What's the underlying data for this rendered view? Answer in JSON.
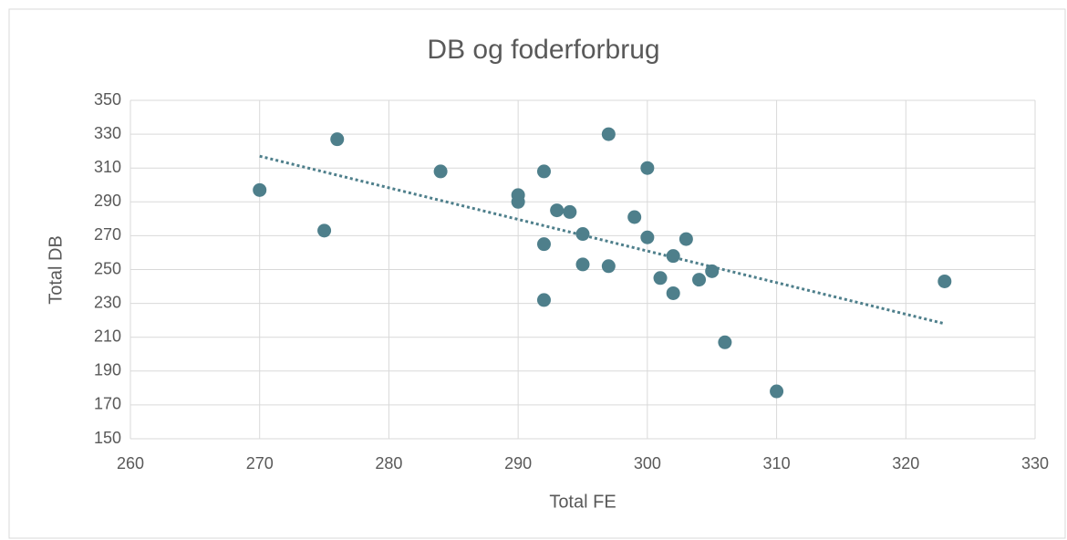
{
  "chart_data": {
    "type": "scatter",
    "title": "DB og foderforbrug",
    "x_label": "Total FE",
    "y_label": "Total DB",
    "series": [
      {
        "color": "#4e7f8b",
        "x": [
          270,
          275,
          276,
          284,
          290,
          290,
          292,
          292,
          292,
          293,
          294,
          295,
          295,
          297,
          297,
          299,
          300,
          300,
          301,
          302,
          302,
          303,
          304,
          305,
          306,
          310,
          323
        ],
        "values": [
          297,
          273,
          327,
          308,
          294,
          290,
          308,
          265,
          232,
          285,
          284,
          271,
          253,
          330,
          252,
          281,
          310,
          269,
          245,
          258,
          236,
          268,
          244,
          249,
          207,
          178,
          243
        ]
      }
    ],
    "trendline": {
      "color": "#4e7f8b",
      "x": [
        270,
        323
      ],
      "values": [
        317,
        218
      ]
    },
    "xlim": [
      260,
      330
    ],
    "xticks": [
      260,
      270,
      280,
      290,
      300,
      310,
      320,
      330
    ],
    "ylim": [
      150,
      350
    ],
    "yticks": [
      150,
      170,
      190,
      210,
      230,
      250,
      270,
      290,
      310,
      330,
      350
    ],
    "grid": true
  }
}
